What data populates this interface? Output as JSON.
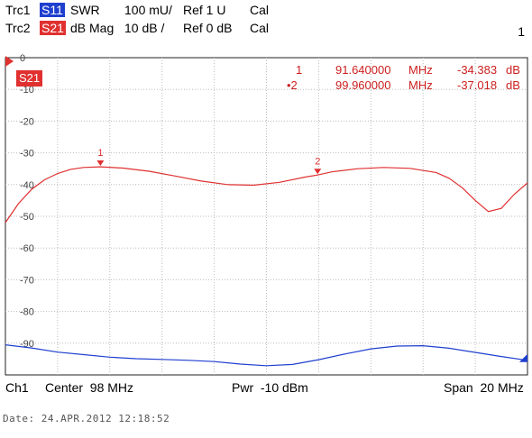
{
  "header": {
    "trc1": {
      "name": "Trc1",
      "param": "S11",
      "format": "SWR",
      "scale": "100 mU/",
      "ref": "Ref 1 U",
      "cal": "Cal",
      "color": "#1f3fcf"
    },
    "trc2": {
      "name": "Trc2",
      "param": "S21",
      "format": "dB Mag",
      "scale": "10 dB /",
      "ref": "Ref 0 dB",
      "cal": "Cal",
      "color": "#e03030"
    }
  },
  "page_indicator": "1",
  "trace_tag": "S21",
  "markers": [
    {
      "id": "1",
      "freq": "91.640000",
      "unit": "MHz",
      "value": "-34.383",
      "vunit": "dB"
    },
    {
      "id": "•2",
      "freq": "99.960000",
      "unit": "MHz",
      "value": "-37.018",
      "vunit": "dB"
    }
  ],
  "footer": {
    "channel": "Ch1",
    "center": "Center  98 MHz",
    "power": "Pwr  -10 dBm",
    "span": "Span  20 MHz"
  },
  "date_line": "Date: 24.APR.2012  12:18:52",
  "chart_data": {
    "type": "line",
    "x_range_mhz": [
      88,
      108
    ],
    "ylim": [
      -100,
      0
    ],
    "yticks": [
      0,
      -10,
      -20,
      -30,
      -40,
      -50,
      -60,
      -70,
      -80,
      -90
    ],
    "ytick_labels": [
      "0",
      "-10",
      "-20",
      "-30",
      "-40",
      "-50",
      "-60",
      "-70",
      "-80",
      "-90"
    ],
    "grid": true,
    "series": [
      {
        "name": "S21",
        "color": "#e03030",
        "x": [
          88,
          88.5,
          89,
          89.5,
          90,
          90.5,
          91,
          91.64,
          92.5,
          93.5,
          94.5,
          95.5,
          96.5,
          97.5,
          98.5,
          99.5,
          99.96,
          100.5,
          101.5,
          102.5,
          103.5,
          104.5,
          105,
          105.5,
          106,
          106.5,
          107,
          107.5,
          108
        ],
        "y": [
          -52,
          -46,
          -41.5,
          -38.5,
          -36.5,
          -35.2,
          -34.6,
          -34.4,
          -34.8,
          -35.8,
          -37.3,
          -38.9,
          -40,
          -40.2,
          -39.3,
          -37.6,
          -37.0,
          -36,
          -35,
          -34.6,
          -34.9,
          -36.2,
          -38,
          -41,
          -45,
          -48.5,
          -47.5,
          -43,
          -39.5
        ]
      },
      {
        "name": "S11",
        "color": "#1f3fcf",
        "x": [
          88,
          89,
          90,
          91,
          92,
          93,
          94,
          95,
          96,
          97,
          98,
          99,
          100,
          101,
          102,
          103,
          104,
          105,
          106,
          107,
          108
        ],
        "y": [
          -90.5,
          -91.5,
          -92.8,
          -93.6,
          -94.4,
          -94.9,
          -95.1,
          -95.4,
          -95.8,
          -96.6,
          -97.1,
          -96.7,
          -95.2,
          -93.4,
          -91.8,
          -90.9,
          -90.8,
          -91.6,
          -92.9,
          -94.2,
          -95.4
        ]
      }
    ],
    "markers": [
      {
        "label": "1",
        "x": 91.64,
        "y": -34.383
      },
      {
        "label": "2",
        "x": 99.96,
        "y": -37.018
      }
    ]
  }
}
